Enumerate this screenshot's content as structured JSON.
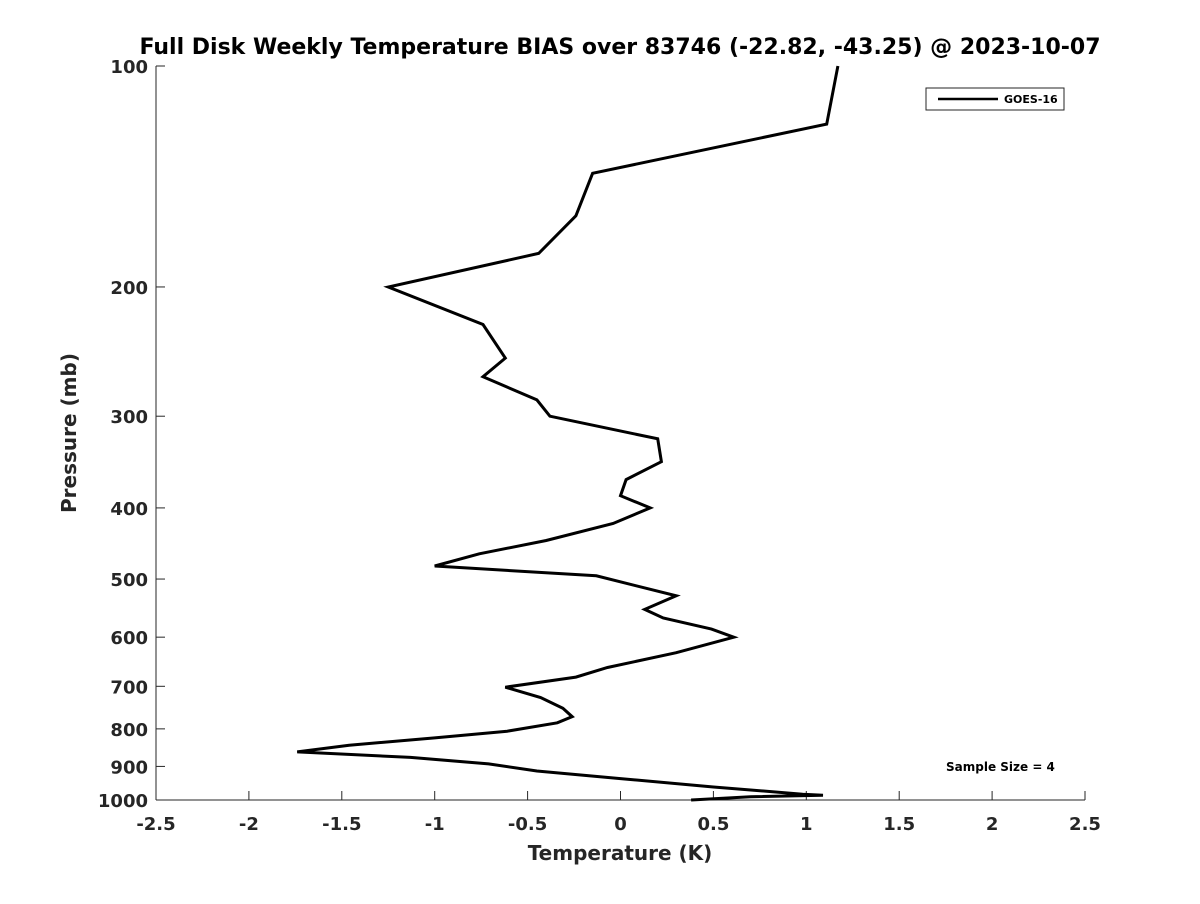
{
  "chart_data": {
    "type": "line",
    "title": "Full Disk Weekly Temperature BIAS over 83746 (-22.82, -43.25) @ 2023-10-07",
    "xlabel": "Temperature (K)",
    "ylabel": "Pressure (mb)",
    "xlim": [
      -2.5,
      2.5
    ],
    "ylim": [
      100,
      1000
    ],
    "y_scale": "log",
    "y_reversed": true,
    "grid": false,
    "legend_position": "top-right",
    "x_ticks": [
      -2.5,
      -2,
      -1.5,
      -1,
      -0.5,
      0,
      0.5,
      1,
      1.5,
      2,
      2.5
    ],
    "x_tick_labels": [
      "-2.5",
      "-2",
      "-1.5",
      "-1",
      "-0.5",
      "0",
      "0.5",
      "1",
      "1.5",
      "2",
      "2.5"
    ],
    "y_ticks": [
      100,
      200,
      300,
      400,
      500,
      600,
      700,
      800,
      900,
      1000
    ],
    "y_tick_labels": [
      "100",
      "200",
      "300",
      "400",
      "500",
      "600",
      "700",
      "800",
      "900",
      "1000"
    ],
    "annotation": "Sample Size = 4",
    "series": [
      {
        "name": "GOES-16",
        "color": "#000000",
        "points": [
          {
            "t": 1.17,
            "p": 100
          },
          {
            "t": 1.11,
            "p": 120
          },
          {
            "t": -0.15,
            "p": 140
          },
          {
            "t": -0.24,
            "p": 160
          },
          {
            "t": -0.44,
            "p": 180
          },
          {
            "t": -1.25,
            "p": 200
          },
          {
            "t": -0.74,
            "p": 225
          },
          {
            "t": -0.62,
            "p": 250
          },
          {
            "t": -0.74,
            "p": 265
          },
          {
            "t": -0.45,
            "p": 285
          },
          {
            "t": -0.38,
            "p": 300
          },
          {
            "t": 0.2,
            "p": 322
          },
          {
            "t": 0.22,
            "p": 346
          },
          {
            "t": 0.03,
            "p": 366
          },
          {
            "t": 0.0,
            "p": 385
          },
          {
            "t": 0.16,
            "p": 400
          },
          {
            "t": -0.04,
            "p": 420
          },
          {
            "t": -0.4,
            "p": 443
          },
          {
            "t": -0.76,
            "p": 462
          },
          {
            "t": -1.0,
            "p": 480
          },
          {
            "t": -0.13,
            "p": 495
          },
          {
            "t": 0.3,
            "p": 527
          },
          {
            "t": 0.13,
            "p": 550
          },
          {
            "t": 0.23,
            "p": 565
          },
          {
            "t": 0.49,
            "p": 585
          },
          {
            "t": 0.61,
            "p": 600
          },
          {
            "t": 0.3,
            "p": 630
          },
          {
            "t": -0.07,
            "p": 660
          },
          {
            "t": -0.24,
            "p": 680
          },
          {
            "t": -0.62,
            "p": 702
          },
          {
            "t": -0.43,
            "p": 725
          },
          {
            "t": -0.31,
            "p": 750
          },
          {
            "t": -0.26,
            "p": 770
          },
          {
            "t": -0.34,
            "p": 785
          },
          {
            "t": -0.61,
            "p": 806
          },
          {
            "t": -1.0,
            "p": 823
          },
          {
            "t": -1.46,
            "p": 842
          },
          {
            "t": -1.74,
            "p": 860
          },
          {
            "t": -1.13,
            "p": 875
          },
          {
            "t": -0.71,
            "p": 893
          },
          {
            "t": -0.45,
            "p": 913
          },
          {
            "t": 0.0,
            "p": 935
          },
          {
            "t": 0.5,
            "p": 960
          },
          {
            "t": 0.98,
            "p": 982
          },
          {
            "t": 1.09,
            "p": 985
          },
          {
            "t": 0.7,
            "p": 990
          },
          {
            "t": 0.38,
            "p": 1000
          }
        ]
      }
    ]
  }
}
